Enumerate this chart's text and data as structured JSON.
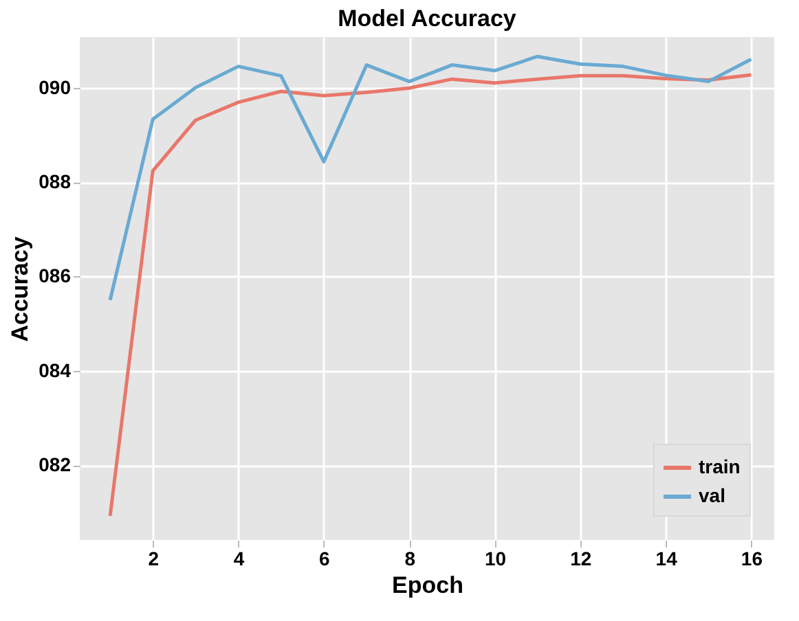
{
  "chart_data": {
    "type": "line",
    "title": "Model Accuracy",
    "xlabel": "Epoch",
    "ylabel": "Accuracy",
    "x": [
      1,
      2,
      3,
      4,
      5,
      6,
      7,
      8,
      9,
      10,
      11,
      12,
      13,
      14,
      15,
      16
    ],
    "series": [
      {
        "name": "train",
        "color": "#e8776a",
        "values": [
          80.93,
          88.24,
          89.31,
          89.69,
          89.92,
          89.83,
          89.9,
          89.99,
          90.18,
          90.1,
          90.18,
          90.25,
          90.25,
          90.19,
          90.16,
          90.27
        ]
      },
      {
        "name": "val",
        "color": "#6aaad2",
        "values": [
          85.5,
          89.33,
          90.0,
          90.45,
          90.25,
          88.43,
          90.48,
          90.13,
          90.48,
          90.36,
          90.66,
          90.5,
          90.45,
          90.26,
          90.13,
          90.6
        ]
      }
    ],
    "xlim": [
      0.29,
      16.54
    ],
    "xticks": [
      2,
      4,
      6,
      8,
      10,
      12,
      14,
      16
    ],
    "ylim": [
      80.42,
      91.07
    ],
    "yticks": [
      {
        "value": 82,
        "label": "082"
      },
      {
        "value": 84,
        "label": "084"
      },
      {
        "value": 86,
        "label": "086"
      },
      {
        "value": 88,
        "label": "088"
      },
      {
        "value": 90,
        "label": "090"
      }
    ],
    "grid": true,
    "legend": "bottom right",
    "marker": "none",
    "line_style": "solid"
  }
}
